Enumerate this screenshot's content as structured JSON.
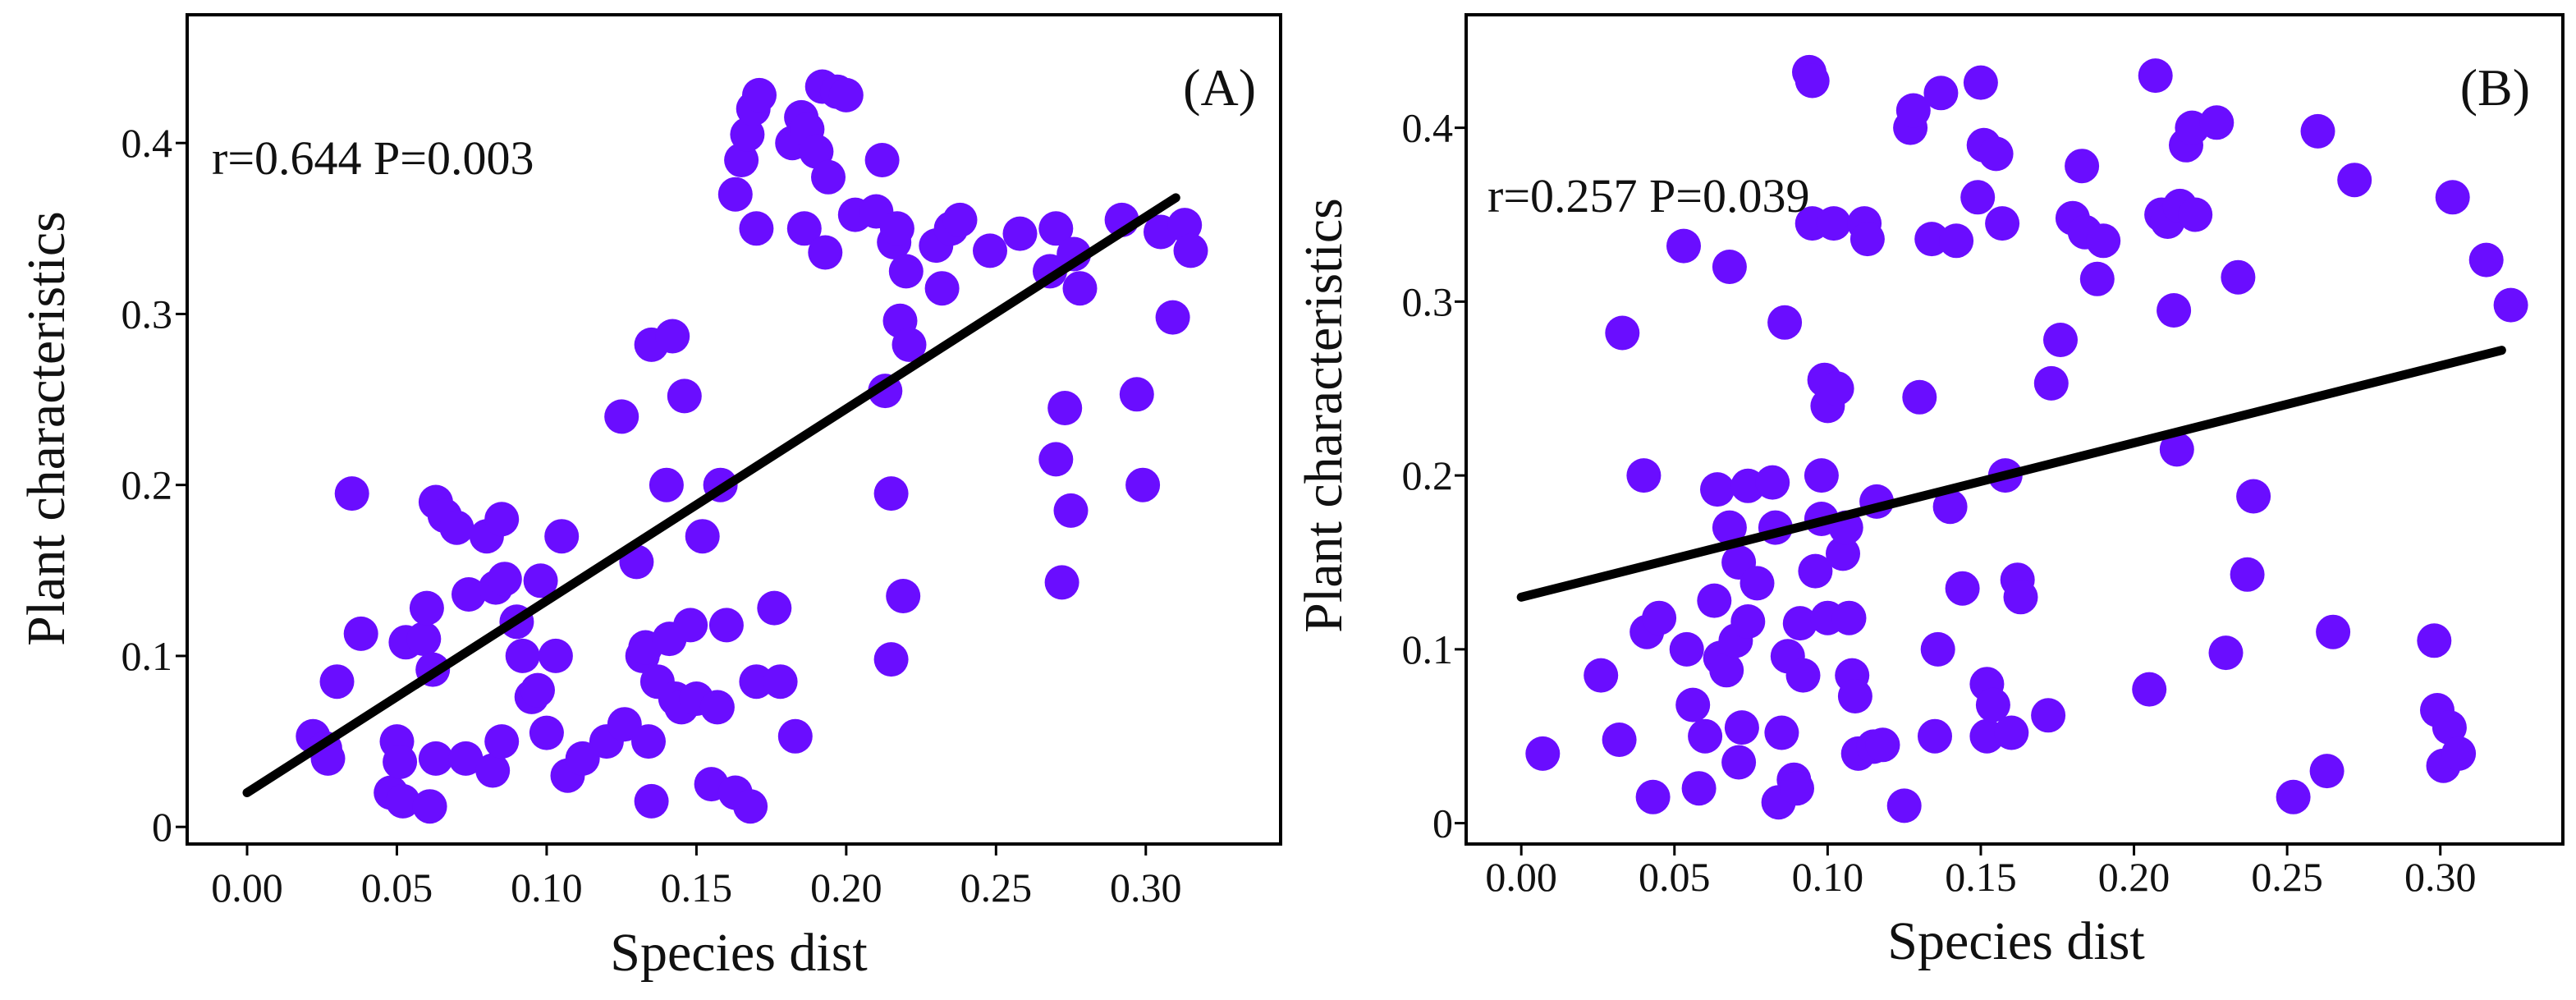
{
  "chart_data": [
    {
      "type": "scatter",
      "panel_label": "(A)",
      "annotation": "r=0.644 P=0.003",
      "xlabel": "Species dist",
      "ylabel": "Plant characteristics",
      "xlim": [
        -0.02,
        0.345
      ],
      "ylim": [
        -0.01,
        0.475
      ],
      "xticks": [
        0.0,
        0.05,
        0.1,
        0.15,
        0.2,
        0.25,
        0.3
      ],
      "xtick_labels": [
        "0.00",
        "0.05",
        "0.10",
        "0.15",
        "0.20",
        "0.25",
        "0.30"
      ],
      "yticks": [
        0,
        0.1,
        0.2,
        0.3,
        0.4
      ],
      "ytick_labels": [
        "0",
        "0.1",
        "0.2",
        "0.3",
        "0.4"
      ],
      "point_color": "#6a0dff",
      "line_color": "#000000",
      "fit_line": {
        "x": [
          0.0,
          0.31
        ],
        "y": [
          0.02,
          0.368
        ]
      },
      "points": [
        [
          0.022,
          0.053
        ],
        [
          0.026,
          0.046
        ],
        [
          0.027,
          0.04
        ],
        [
          0.03,
          0.085
        ],
        [
          0.035,
          0.195
        ],
        [
          0.038,
          0.113
        ],
        [
          0.048,
          0.02
        ],
        [
          0.05,
          0.05
        ],
        [
          0.051,
          0.038
        ],
        [
          0.052,
          0.015
        ],
        [
          0.053,
          0.108
        ],
        [
          0.059,
          0.11
        ],
        [
          0.06,
          0.128
        ],
        [
          0.061,
          0.012
        ],
        [
          0.062,
          0.092
        ],
        [
          0.063,
          0.04
        ],
        [
          0.063,
          0.19
        ],
        [
          0.066,
          0.182
        ],
        [
          0.07,
          0.175
        ],
        [
          0.073,
          0.04
        ],
        [
          0.074,
          0.136
        ],
        [
          0.08,
          0.17
        ],
        [
          0.082,
          0.033
        ],
        [
          0.083,
          0.14
        ],
        [
          0.085,
          0.05
        ],
        [
          0.085,
          0.18
        ],
        [
          0.086,
          0.145
        ],
        [
          0.09,
          0.12
        ],
        [
          0.092,
          0.1
        ],
        [
          0.095,
          0.076
        ],
        [
          0.097,
          0.08
        ],
        [
          0.098,
          0.144
        ],
        [
          0.1,
          0.055
        ],
        [
          0.103,
          0.1
        ],
        [
          0.105,
          0.17
        ],
        [
          0.107,
          0.03
        ],
        [
          0.112,
          0.04
        ],
        [
          0.12,
          0.05
        ],
        [
          0.125,
          0.24
        ],
        [
          0.126,
          0.06
        ],
        [
          0.13,
          0.155
        ],
        [
          0.132,
          0.1
        ],
        [
          0.133,
          0.105
        ],
        [
          0.134,
          0.05
        ],
        [
          0.135,
          0.282
        ],
        [
          0.135,
          0.015
        ],
        [
          0.137,
          0.085
        ],
        [
          0.14,
          0.2
        ],
        [
          0.141,
          0.11
        ],
        [
          0.142,
          0.287
        ],
        [
          0.143,
          0.075
        ],
        [
          0.145,
          0.07
        ],
        [
          0.146,
          0.252
        ],
        [
          0.148,
          0.118
        ],
        [
          0.15,
          0.075
        ],
        [
          0.152,
          0.17
        ],
        [
          0.155,
          0.025
        ],
        [
          0.157,
          0.07
        ],
        [
          0.158,
          0.2
        ],
        [
          0.16,
          0.118
        ],
        [
          0.163,
          0.02
        ],
        [
          0.163,
          0.37
        ],
        [
          0.165,
          0.39
        ],
        [
          0.167,
          0.405
        ],
        [
          0.168,
          0.012
        ],
        [
          0.169,
          0.42
        ],
        [
          0.17,
          0.085
        ],
        [
          0.171,
          0.428
        ],
        [
          0.17,
          0.35
        ],
        [
          0.176,
          0.128
        ],
        [
          0.178,
          0.085
        ],
        [
          0.183,
          0.053
        ],
        [
          0.182,
          0.4
        ],
        [
          0.185,
          0.415
        ],
        [
          0.186,
          0.35
        ],
        [
          0.187,
          0.408
        ],
        [
          0.19,
          0.395
        ],
        [
          0.192,
          0.433
        ],
        [
          0.193,
          0.336
        ],
        [
          0.194,
          0.38
        ],
        [
          0.197,
          0.43
        ],
        [
          0.2,
          0.428
        ],
        [
          0.203,
          0.358
        ],
        [
          0.21,
          0.36
        ],
        [
          0.212,
          0.39
        ],
        [
          0.213,
          0.255
        ],
        [
          0.215,
          0.195
        ],
        [
          0.215,
          0.098
        ],
        [
          0.216,
          0.342
        ],
        [
          0.217,
          0.35
        ],
        [
          0.218,
          0.296
        ],
        [
          0.219,
          0.135
        ],
        [
          0.22,
          0.325
        ],
        [
          0.221,
          0.282
        ],
        [
          0.23,
          0.34
        ],
        [
          0.232,
          0.315
        ],
        [
          0.235,
          0.35
        ],
        [
          0.238,
          0.355
        ],
        [
          0.248,
          0.337
        ],
        [
          0.258,
          0.347
        ],
        [
          0.268,
          0.325
        ],
        [
          0.27,
          0.35
        ],
        [
          0.27,
          0.215
        ],
        [
          0.272,
          0.143
        ],
        [
          0.273,
          0.245
        ],
        [
          0.275,
          0.185
        ],
        [
          0.276,
          0.335
        ],
        [
          0.278,
          0.315
        ],
        [
          0.292,
          0.355
        ],
        [
          0.297,
          0.253
        ],
        [
          0.299,
          0.2
        ],
        [
          0.305,
          0.348
        ],
        [
          0.309,
          0.298
        ],
        [
          0.313,
          0.352
        ],
        [
          0.315,
          0.337
        ]
      ]
    },
    {
      "type": "scatter",
      "panel_label": "(B)",
      "annotation": "r=0.257 P=0.039",
      "xlabel": "Species dist",
      "ylabel": "Plant characteristics",
      "xlim": [
        -0.018,
        0.34
      ],
      "ylim": [
        -0.012,
        0.465
      ],
      "xticks": [
        0.0,
        0.05,
        0.1,
        0.15,
        0.2,
        0.25,
        0.3
      ],
      "xtick_labels": [
        "0.00",
        "0.05",
        "0.10",
        "0.15",
        "0.20",
        "0.25",
        "0.30"
      ],
      "yticks": [
        0,
        0.1,
        0.2,
        0.3,
        0.4
      ],
      "ytick_labels": [
        "0",
        "0.1",
        "0.2",
        "0.3",
        "0.4"
      ],
      "point_color": "#6a0dff",
      "line_color": "#000000",
      "fit_line": {
        "x": [
          0.0,
          0.32
        ],
        "y": [
          0.13,
          0.272
        ]
      },
      "points": [
        [
          0.007,
          0.04
        ],
        [
          0.026,
          0.085
        ],
        [
          0.032,
          0.048
        ],
        [
          0.033,
          0.282
        ],
        [
          0.04,
          0.2
        ],
        [
          0.041,
          0.11
        ],
        [
          0.043,
          0.015
        ],
        [
          0.045,
          0.118
        ],
        [
          0.053,
          0.332
        ],
        [
          0.054,
          0.1
        ],
        [
          0.056,
          0.068
        ],
        [
          0.058,
          0.02
        ],
        [
          0.06,
          0.05
        ],
        [
          0.063,
          0.128
        ],
        [
          0.064,
          0.192
        ],
        [
          0.065,
          0.095
        ],
        [
          0.067,
          0.088
        ],
        [
          0.068,
          0.32
        ],
        [
          0.068,
          0.17
        ],
        [
          0.07,
          0.105
        ],
        [
          0.071,
          0.035
        ],
        [
          0.071,
          0.15
        ],
        [
          0.072,
          0.055
        ],
        [
          0.074,
          0.116
        ],
        [
          0.074,
          0.194
        ],
        [
          0.077,
          0.138
        ],
        [
          0.082,
          0.196
        ],
        [
          0.083,
          0.17
        ],
        [
          0.084,
          0.012
        ],
        [
          0.085,
          0.052
        ],
        [
          0.086,
          0.288
        ],
        [
          0.087,
          0.096
        ],
        [
          0.089,
          0.025
        ],
        [
          0.09,
          0.02
        ],
        [
          0.091,
          0.115
        ],
        [
          0.092,
          0.085
        ],
        [
          0.094,
          0.432
        ],
        [
          0.095,
          0.427
        ],
        [
          0.095,
          0.345
        ],
        [
          0.096,
          0.145
        ],
        [
          0.098,
          0.2
        ],
        [
          0.098,
          0.175
        ],
        [
          0.099,
          0.255
        ],
        [
          0.1,
          0.24
        ],
        [
          0.1,
          0.118
        ],
        [
          0.102,
          0.345
        ],
        [
          0.103,
          0.25
        ],
        [
          0.105,
          0.155
        ],
        [
          0.106,
          0.17
        ],
        [
          0.107,
          0.118
        ],
        [
          0.108,
          0.085
        ],
        [
          0.109,
          0.073
        ],
        [
          0.11,
          0.04
        ],
        [
          0.112,
          0.345
        ],
        [
          0.113,
          0.336
        ],
        [
          0.115,
          0.044
        ],
        [
          0.116,
          0.185
        ],
        [
          0.118,
          0.045
        ],
        [
          0.125,
          0.01
        ],
        [
          0.127,
          0.4
        ],
        [
          0.128,
          0.41
        ],
        [
          0.13,
          0.245
        ],
        [
          0.134,
          0.336
        ],
        [
          0.135,
          0.05
        ],
        [
          0.136,
          0.1
        ],
        [
          0.137,
          0.42
        ],
        [
          0.14,
          0.182
        ],
        [
          0.142,
          0.335
        ],
        [
          0.144,
          0.135
        ],
        [
          0.149,
          0.36
        ],
        [
          0.15,
          0.426
        ],
        [
          0.151,
          0.39
        ],
        [
          0.152,
          0.05
        ],
        [
          0.152,
          0.08
        ],
        [
          0.154,
          0.068
        ],
        [
          0.155,
          0.385
        ],
        [
          0.157,
          0.345
        ],
        [
          0.158,
          0.2
        ],
        [
          0.16,
          0.052
        ],
        [
          0.162,
          0.14
        ],
        [
          0.163,
          0.13
        ],
        [
          0.172,
          0.062
        ],
        [
          0.173,
          0.253
        ],
        [
          0.176,
          0.278
        ],
        [
          0.18,
          0.348
        ],
        [
          0.183,
          0.378
        ],
        [
          0.184,
          0.34
        ],
        [
          0.188,
          0.313
        ],
        [
          0.19,
          0.335
        ],
        [
          0.205,
          0.077
        ],
        [
          0.207,
          0.43
        ],
        [
          0.209,
          0.35
        ],
        [
          0.211,
          0.346
        ],
        [
          0.213,
          0.295
        ],
        [
          0.214,
          0.215
        ],
        [
          0.215,
          0.355
        ],
        [
          0.217,
          0.39
        ],
        [
          0.219,
          0.4
        ],
        [
          0.22,
          0.35
        ],
        [
          0.227,
          0.403
        ],
        [
          0.23,
          0.098
        ],
        [
          0.234,
          0.314
        ],
        [
          0.237,
          0.143
        ],
        [
          0.239,
          0.188
        ],
        [
          0.252,
          0.015
        ],
        [
          0.26,
          0.398
        ],
        [
          0.263,
          0.03
        ],
        [
          0.265,
          0.11
        ],
        [
          0.272,
          0.37
        ],
        [
          0.298,
          0.105
        ],
        [
          0.299,
          0.065
        ],
        [
          0.301,
          0.033
        ],
        [
          0.303,
          0.055
        ],
        [
          0.304,
          0.36
        ],
        [
          0.306,
          0.04
        ],
        [
          0.315,
          0.324
        ],
        [
          0.323,
          0.298
        ]
      ]
    }
  ]
}
